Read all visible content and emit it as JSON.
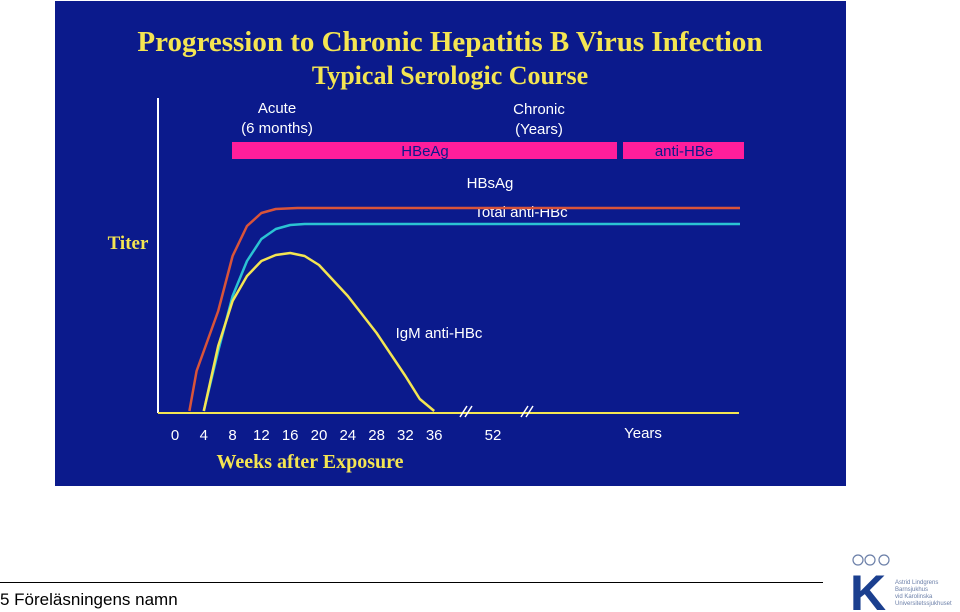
{
  "chart_data": {
    "type": "line",
    "title": "Progression to Chronic Hepatitis B Virus Infection",
    "subtitle": "Typical Serologic Course",
    "ylabel": "Titer",
    "xlabel": "Weeks after Exposure",
    "x_ticks": [
      "0",
      "4",
      "8",
      "12",
      "16",
      "20",
      "24",
      "28",
      "32",
      "36"
    ],
    "x_break_tick": "52",
    "years_label": "Years",
    "phases": {
      "acute": "Acute",
      "acute_duration": "(6 months)",
      "chronic": "Chronic",
      "chronic_duration": "(Years)"
    },
    "bars": [
      {
        "name": "HBeAg",
        "color": "#ff1e9b"
      },
      {
        "name": "anti-HBe",
        "color": "#ff1e9b"
      }
    ],
    "series": [
      {
        "name": "HBsAg",
        "color": "#d9543a",
        "x": [
          2,
          3,
          6,
          8,
          10,
          12,
          14,
          17,
          52,
          300
        ],
        "y": [
          0,
          40,
          100,
          155,
          185,
          198,
          202,
          203,
          203,
          203
        ]
      },
      {
        "name": "Total anti-HBc",
        "color": "#2bc3d3",
        "x": [
          4,
          6,
          8,
          10,
          12,
          14,
          16,
          18,
          52,
          300
        ],
        "y": [
          0,
          60,
          115,
          150,
          172,
          182,
          186,
          187,
          187,
          187
        ]
      },
      {
        "name": "IgM anti-HBc",
        "color": "#f4e552",
        "x": [
          4,
          6,
          8,
          10,
          12,
          14,
          16,
          18,
          20,
          24,
          28,
          32,
          34,
          36
        ],
        "y": [
          0,
          65,
          110,
          135,
          150,
          156,
          158,
          155,
          146,
          115,
          78,
          35,
          12,
          0
        ]
      }
    ]
  },
  "footer": {
    "text": "5 Föreläsningens namn"
  },
  "logo": {
    "letter": "K",
    "lines": [
      "Astrid Lindgrens",
      "Barnsjukhus",
      "vid Karolinska",
      "Universitetssjukhuset"
    ]
  }
}
